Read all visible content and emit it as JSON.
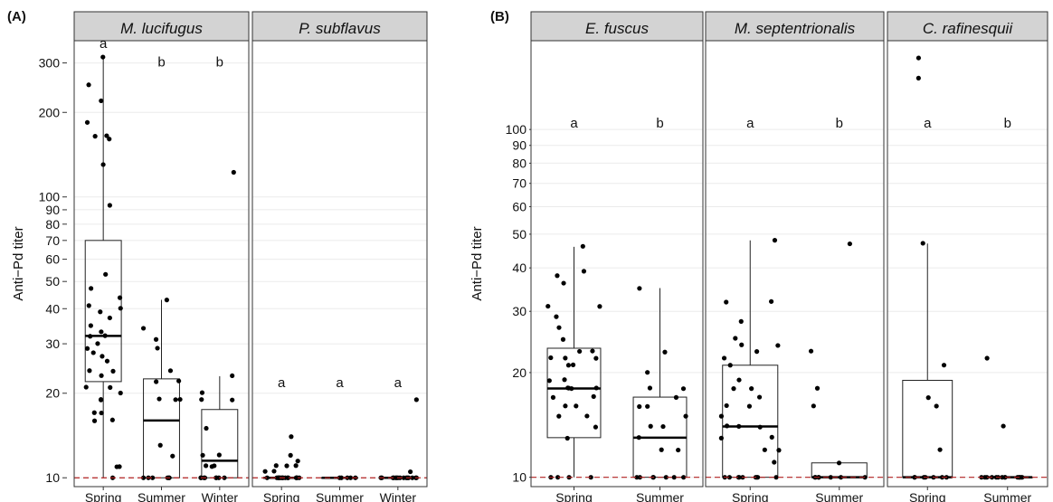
{
  "chart_data": [
    {
      "type": "boxplot",
      "panel_label": "(A)",
      "ylabel": "Anti−Pd titer",
      "yscale": "log",
      "ylim": [
        9.3,
        360
      ],
      "yticks": [
        10,
        20,
        30,
        40,
        50,
        60,
        70,
        80,
        90,
        100,
        200,
        300
      ],
      "reference_line": 10,
      "facets": [
        {
          "title": "M. lucifugus",
          "categories": [
            "Spring",
            "Summer",
            "Winter"
          ],
          "groups": [
            {
              "category": "Spring",
              "letter": "a",
              "box": {
                "min": 10,
                "q1": 22,
                "median": 32,
                "q3": 70,
                "max": 315
              },
              "points": [
                315,
                250,
                220,
                185,
                165,
                165,
                160,
                130,
                93,
                53,
                47,
                44,
                41,
                40,
                39,
                37,
                35,
                33,
                32,
                32,
                30,
                29,
                28,
                27,
                26,
                24,
                24,
                23,
                21,
                21,
                20,
                19,
                19,
                17,
                17,
                16,
                16,
                11,
                11,
                10
              ]
            },
            {
              "category": "Summer",
              "letter": "b",
              "box": {
                "min": 10,
                "q1": 10,
                "median": 16,
                "q3": 22.5,
                "max": 43
              },
              "points": [
                43,
                34,
                31,
                29,
                24,
                22,
                22,
                19,
                19,
                19,
                13,
                12,
                10,
                10,
                10,
                10,
                10,
                10
              ]
            },
            {
              "category": "Winter",
              "letter": "b",
              "box": {
                "min": 10,
                "q1": 10,
                "median": 11.5,
                "q3": 17.5,
                "max": 23
              },
              "points": [
                122,
                23,
                20,
                19,
                19,
                15,
                12,
                12,
                11,
                11,
                11,
                10,
                10,
                10,
                10,
                10,
                10,
                10,
                10
              ]
            }
          ]
        },
        {
          "title": "P. subflavus",
          "categories": [
            "Spring",
            "Summer",
            "Winter"
          ],
          "groups": [
            {
              "category": "Spring",
              "letter": "a",
              "box": {
                "min": 10,
                "q1": 10,
                "median": 10,
                "q3": 10,
                "max": 10
              },
              "points": [
                14,
                12,
                11.5,
                11,
                11,
                11,
                10.5,
                10.5,
                10,
                10,
                10,
                10,
                10,
                10,
                10,
                10,
                10,
                10,
                10,
                10,
                10,
                10,
                10,
                10,
                10
              ]
            },
            {
              "category": "Summer",
              "letter": "a",
              "box": {
                "min": 10,
                "q1": 10,
                "median": 10,
                "q3": 10,
                "max": 10
              },
              "points": [
                10,
                10,
                10,
                10,
                10
              ]
            },
            {
              "category": "Winter",
              "letter": "a",
              "box": {
                "min": 10,
                "q1": 10,
                "median": 10,
                "q3": 10,
                "max": 10
              },
              "points": [
                19,
                10.5,
                10,
                10,
                10,
                10,
                10,
                10,
                10,
                10,
                10,
                10,
                10,
                10,
                10,
                10,
                10
              ]
            }
          ]
        }
      ]
    },
    {
      "type": "boxplot",
      "panel_label": "(B)",
      "ylabel": "Anti−Pd titer",
      "yscale": "log",
      "ylim": [
        9.4,
        180
      ],
      "yticks": [
        10,
        20,
        30,
        40,
        50,
        60,
        70,
        80,
        90,
        100
      ],
      "reference_line": 10,
      "facets": [
        {
          "title": "E. fuscus",
          "categories": [
            "Spring",
            "Summer"
          ],
          "groups": [
            {
              "category": "Spring",
              "letter": "a",
              "box": {
                "min": 10,
                "q1": 13,
                "median": 18,
                "q3": 23.5,
                "max": 46
              },
              "points": [
                46,
                39,
                38,
                36,
                31,
                31,
                29,
                27,
                25,
                23,
                23,
                22,
                22,
                22,
                21,
                21,
                19,
                19,
                18,
                18,
                18,
                18,
                17,
                17,
                16,
                16,
                15,
                15,
                14,
                13,
                10,
                10,
                10,
                10
              ]
            },
            {
              "category": "Summer",
              "letter": "b",
              "box": {
                "min": 10,
                "q1": 10,
                "median": 13,
                "q3": 17,
                "max": 35
              },
              "points": [
                35,
                23,
                20,
                18,
                18,
                17,
                16,
                16,
                15,
                14,
                14,
                13,
                12,
                12,
                10,
                10,
                10,
                10,
                10,
                10,
                10
              ]
            }
          ]
        },
        {
          "title": "M. septentrionalis",
          "categories": [
            "Spring",
            "Summer"
          ],
          "groups": [
            {
              "category": "Spring",
              "letter": "a",
              "box": {
                "min": 10,
                "q1": 10,
                "median": 14,
                "q3": 21,
                "max": 48
              },
              "points": [
                48,
                32,
                32,
                28,
                25,
                24,
                24,
                23,
                22,
                21,
                19,
                18,
                18,
                17,
                16,
                16,
                15,
                14,
                14,
                14,
                13,
                13,
                12,
                12,
                11,
                10,
                10,
                10,
                10,
                10,
                10,
                10,
                10,
                10
              ]
            },
            {
              "category": "Summer",
              "letter": "b",
              "box": {
                "min": 10,
                "q1": 10,
                "median": 10,
                "q3": 11,
                "max": 11
              },
              "points": [
                47,
                23,
                18,
                16,
                11,
                10,
                10,
                10,
                10,
                10,
                10,
                10
              ]
            }
          ]
        },
        {
          "title": "C. rafinesquii",
          "categories": [
            "Spring",
            "Summer"
          ],
          "groups": [
            {
              "category": "Spring",
              "letter": "a",
              "box": {
                "min": 10,
                "q1": 10,
                "median": 10,
                "q3": 19,
                "max": 47
              },
              "points": [
                160,
                140,
                47,
                21,
                17,
                16,
                12,
                10,
                10,
                10,
                10,
                10,
                10,
                10
              ]
            },
            {
              "category": "Summer",
              "letter": "b",
              "box": {
                "min": 10,
                "q1": 10,
                "median": 10,
                "q3": 10,
                "max": 10
              },
              "points": [
                22,
                14,
                10,
                10,
                10,
                10,
                10,
                10,
                10,
                10,
                10,
                10,
                10,
                10,
                10,
                10
              ]
            }
          ]
        }
      ]
    }
  ]
}
